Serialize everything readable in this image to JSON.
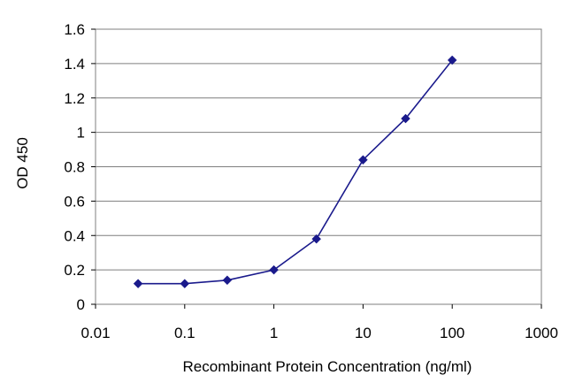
{
  "chart_data": {
    "type": "line",
    "title": "",
    "xlabel": "Recombinant Protein Concentration (ng/ml)",
    "ylabel": "OD 450",
    "x_scale": "log",
    "xlim": [
      0.01,
      1000
    ],
    "ylim": [
      0,
      1.6
    ],
    "x_ticks": [
      0.01,
      0.1,
      1,
      10,
      100,
      1000
    ],
    "x_tick_labels": [
      "0.01",
      "0.1",
      "1",
      "10",
      "100",
      "1000"
    ],
    "y_ticks": [
      0,
      0.2,
      0.4,
      0.6,
      0.8,
      1,
      1.2,
      1.4,
      1.6
    ],
    "y_tick_labels": [
      "0",
      "0.2",
      "0.4",
      "0.6",
      "0.8",
      "1",
      "1.2",
      "1.4",
      "1.6"
    ],
    "grid": "horizontal",
    "legend": "none",
    "series": [
      {
        "x": [
          0.03,
          0.1,
          0.3,
          1,
          3,
          10,
          30,
          100
        ],
        "y": [
          0.12,
          0.12,
          0.14,
          0.2,
          0.38,
          0.84,
          1.08,
          1.42
        ],
        "color": "#1a1a8c",
        "marker": "diamond"
      }
    ],
    "colors": {
      "plot_border": "#7f7f7f",
      "grid": "#7f7f7f",
      "line": "#1a1a8c"
    }
  }
}
